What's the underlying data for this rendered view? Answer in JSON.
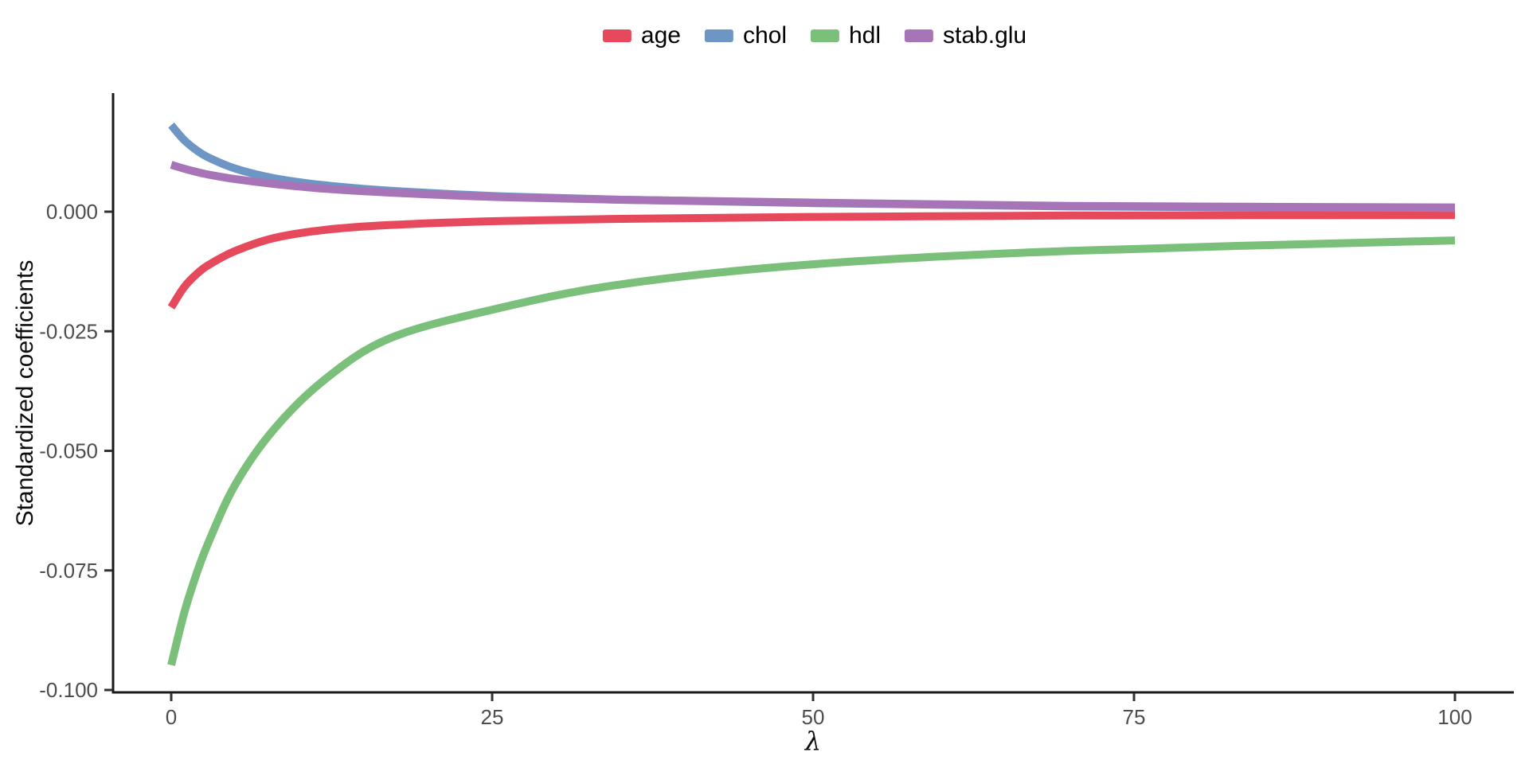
{
  "chart_data": {
    "type": "line",
    "title": "",
    "xlabel": "λ",
    "ylabel": "Standardized coefficients",
    "xlim": [
      0,
      100
    ],
    "ylim": [
      -0.1005,
      0.0246
    ],
    "grid": false,
    "legend_position": "top-center",
    "x_ticks": [
      0,
      25,
      50,
      75,
      100
    ],
    "x_tick_labels": [
      "0",
      "25",
      "50",
      "75",
      "100"
    ],
    "y_ticks": [
      0,
      -0.025,
      -0.05,
      -0.075,
      -0.1
    ],
    "y_tick_labels": [
      "0.000",
      "-0.025",
      "-0.050",
      "-0.075",
      "-0.100"
    ],
    "x": [
      0,
      1,
      2,
      3,
      5,
      8,
      12,
      17,
      25,
      35,
      50,
      70,
      100
    ],
    "series": [
      {
        "name": "age",
        "color": "#E6495C",
        "values": [
          -0.02,
          -0.0158,
          -0.013,
          -0.011,
          -0.0082,
          -0.0055,
          -0.0038,
          -0.0028,
          -0.002,
          -0.0015,
          -0.0011,
          -0.0008,
          -0.0007
        ]
      },
      {
        "name": "chol",
        "color": "#6E96C4",
        "values": [
          0.0181,
          0.015,
          0.0128,
          0.0112,
          0.009,
          0.007,
          0.0055,
          0.0044,
          0.0033,
          0.0025,
          0.0018,
          0.0011,
          0.0008
        ]
      },
      {
        "name": "hdl",
        "color": "#7ABF7A",
        "values": [
          -0.0948,
          -0.084,
          -0.0755,
          -0.0685,
          -0.057,
          -0.0455,
          -0.035,
          -0.0265,
          -0.0205,
          -0.0152,
          -0.011,
          -0.0082,
          -0.006
        ]
      },
      {
        "name": "stab.glu",
        "color": "#A874B8",
        "values": [
          0.0098,
          0.009,
          0.0083,
          0.0077,
          0.0068,
          0.0058,
          0.0048,
          0.004,
          0.0031,
          0.0025,
          0.0019,
          0.0012,
          0.0009
        ]
      }
    ]
  },
  "legend": {
    "items": [
      {
        "label": "age",
        "color": "#E6495C"
      },
      {
        "label": "chol",
        "color": "#6E96C4"
      },
      {
        "label": "hdl",
        "color": "#7ABF7A"
      },
      {
        "label": "stab.glu",
        "color": "#A874B8"
      }
    ]
  },
  "colors": {
    "axis_line": "#1a1a1a",
    "tick_mark": "#333333",
    "tick_label": "#4d4d4d",
    "title_text": "#0d0d0d",
    "background": "#ffffff"
  }
}
